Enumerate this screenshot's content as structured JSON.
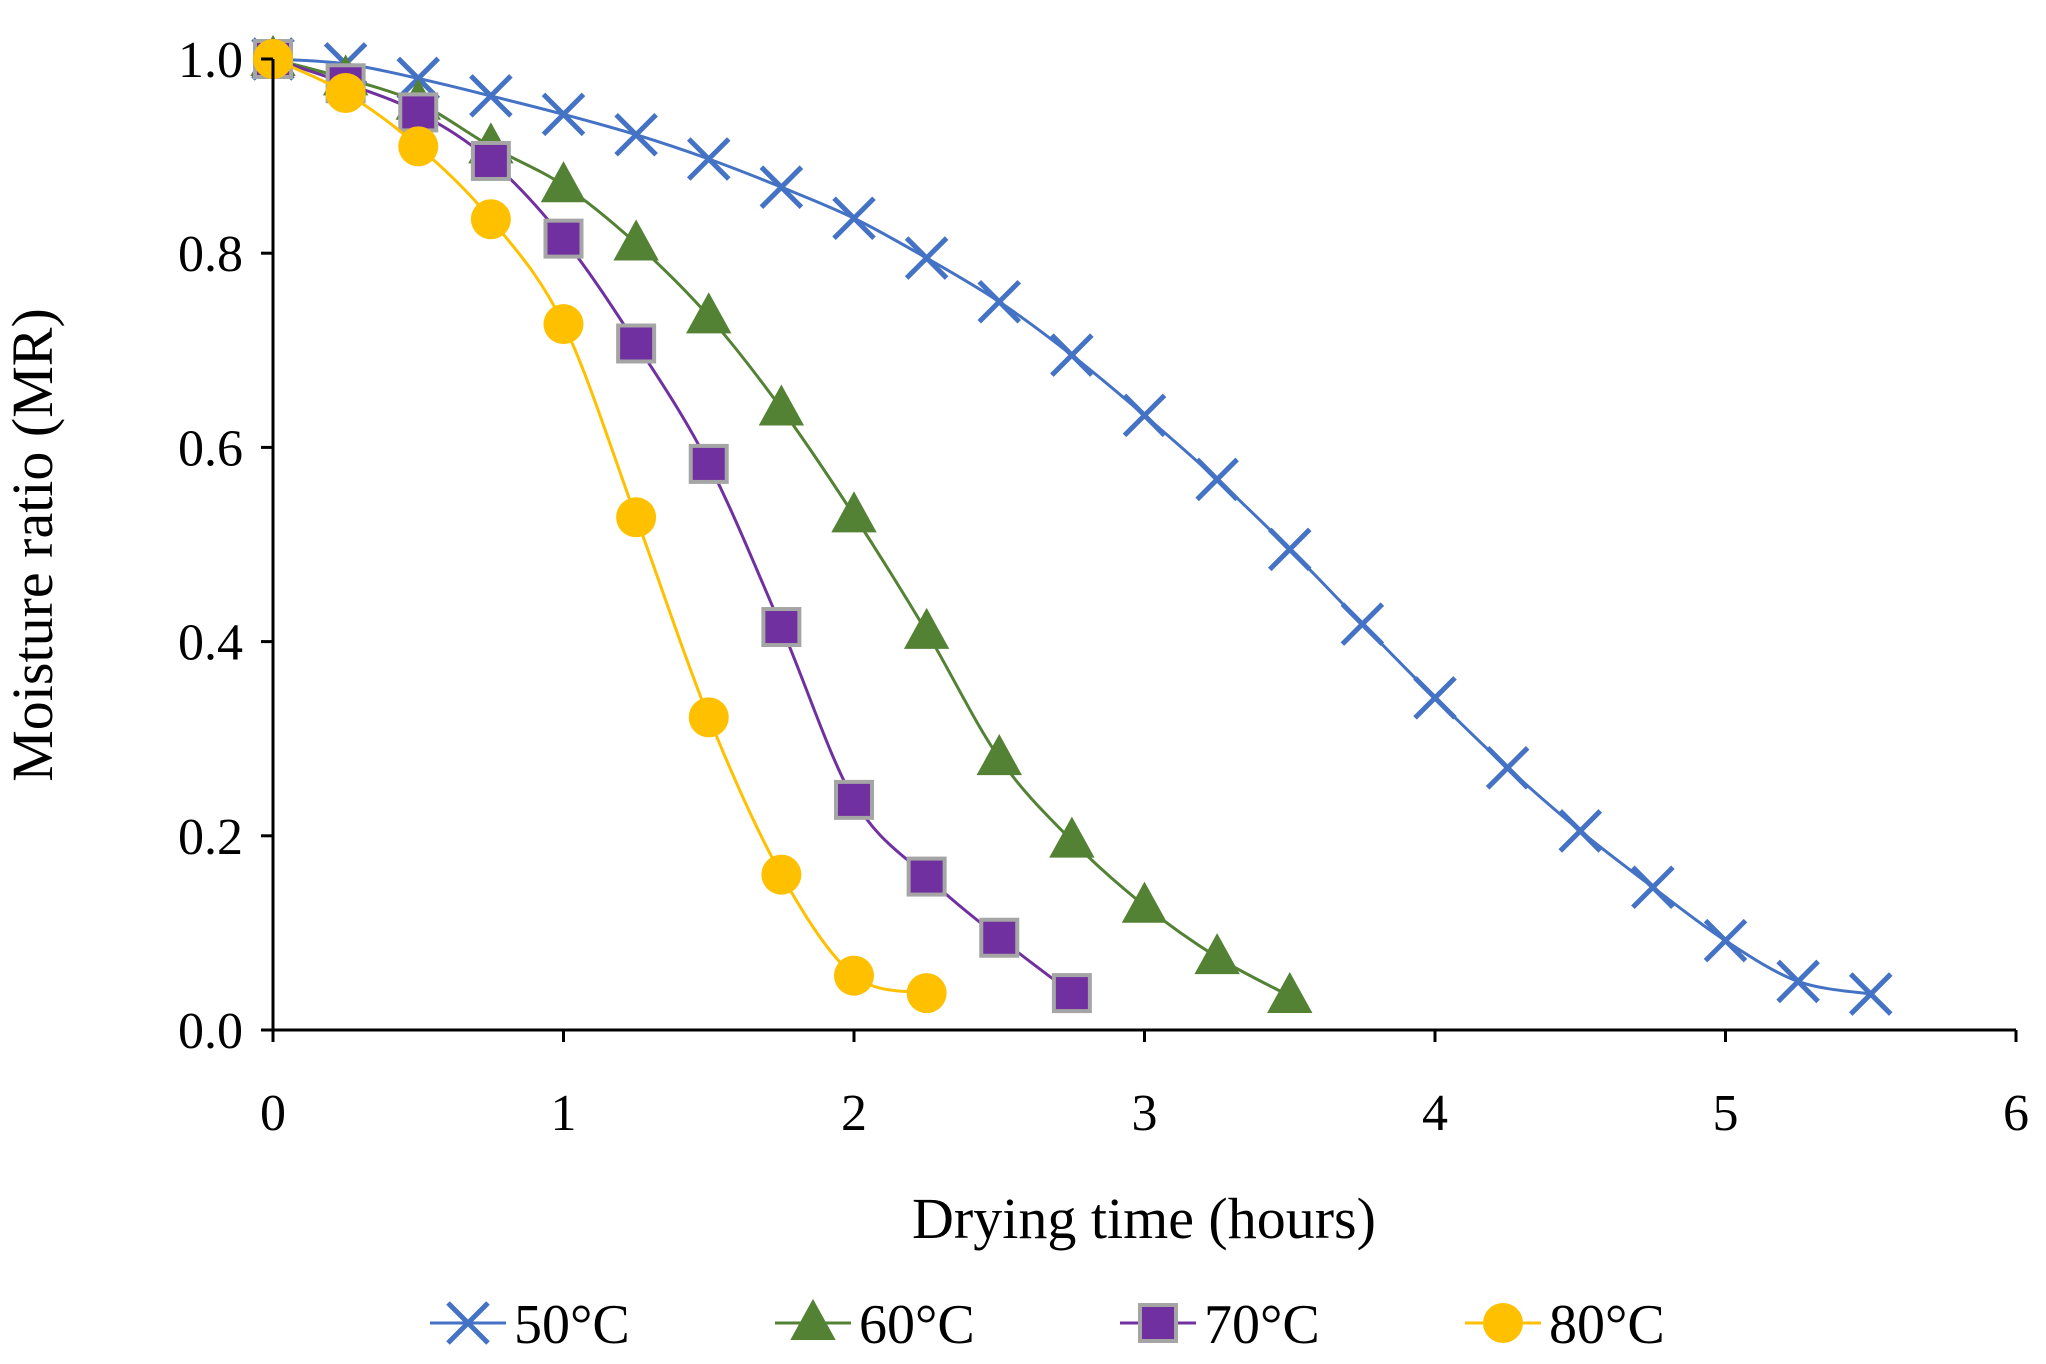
{
  "chart_data": {
    "type": "line",
    "xlabel": "Drying time (hours)",
    "ylabel": "Moisture ratio (MR)",
    "xlim": [
      0,
      6
    ],
    "ylim": [
      0,
      1.0
    ],
    "xticks": [
      "0",
      "1",
      "2",
      "3",
      "4",
      "5",
      "6"
    ],
    "yticks": [
      "0.0",
      "0.2",
      "0.4",
      "0.6",
      "0.8",
      "1.0"
    ],
    "grid": false,
    "legend_position": "bottom",
    "series": [
      {
        "name": "50°C",
        "marker": "x",
        "color": "#4472C4",
        "x": [
          0,
          0.25,
          0.5,
          0.75,
          1,
          1.25,
          1.5,
          1.75,
          2,
          2.25,
          2.5,
          2.75,
          3,
          3.25,
          3.5,
          3.75,
          4,
          4.25,
          4.5,
          4.75,
          5,
          5.25,
          5.5
        ],
        "values": [
          1.0,
          0.995,
          0.98,
          0.962,
          0.943,
          0.922,
          0.897,
          0.868,
          0.836,
          0.795,
          0.75,
          0.695,
          0.633,
          0.567,
          0.495,
          0.418,
          0.342,
          0.27,
          0.205,
          0.147,
          0.092,
          0.05,
          0.037
        ]
      },
      {
        "name": "60°C",
        "marker": "triangle",
        "color": "#548235",
        "x": [
          0,
          0.25,
          0.5,
          0.75,
          1,
          1.25,
          1.5,
          1.75,
          2,
          2.25,
          2.5,
          2.75,
          3,
          3.25,
          3.5
        ],
        "values": [
          1.0,
          0.98,
          0.955,
          0.91,
          0.87,
          0.81,
          0.735,
          0.64,
          0.53,
          0.41,
          0.28,
          0.195,
          0.128,
          0.075,
          0.035
        ]
      },
      {
        "name": "70°C",
        "marker": "square",
        "color": "#7030A0",
        "x": [
          0,
          0.25,
          0.5,
          0.75,
          1,
          1.25,
          1.5,
          1.75,
          2,
          2.25,
          2.5,
          2.75
        ],
        "values": [
          1.0,
          0.975,
          0.945,
          0.895,
          0.815,
          0.707,
          0.583,
          0.415,
          0.237,
          0.158,
          0.095,
          0.038
        ]
      },
      {
        "name": "80°C",
        "marker": "circle",
        "color": "#FFC000",
        "x": [
          0,
          0.25,
          0.5,
          0.75,
          1,
          1.25,
          1.5,
          1.75,
          2,
          2.25
        ],
        "values": [
          1.0,
          0.965,
          0.91,
          0.835,
          0.727,
          0.528,
          0.322,
          0.16,
          0.056,
          0.038
        ]
      }
    ]
  }
}
